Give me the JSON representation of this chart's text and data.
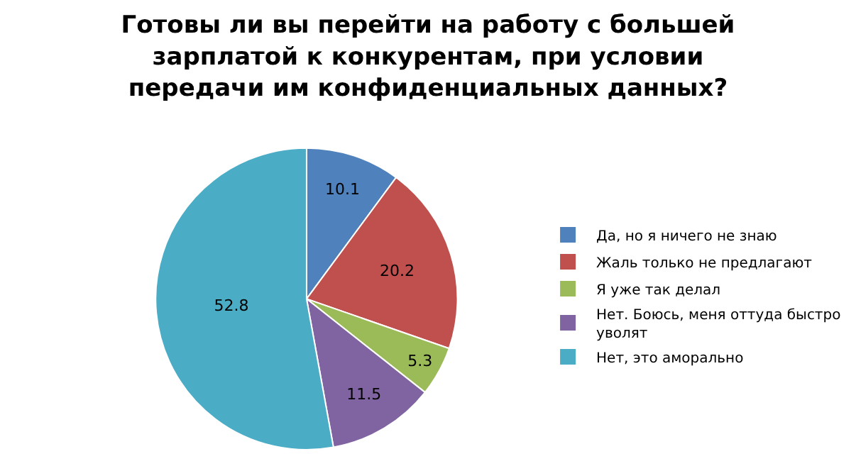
{
  "chart_data": {
    "type": "pie",
    "title": "Готовы ли вы перейти на работу с большей зарплатой к конкурентам, при условии передачи им конфиденциальных данных?",
    "categories": [
      "Да, но я ничего не знаю",
      "Жаль только не предлагают",
      "Я уже так делал",
      "Нет. Боюсь, меня оттуда быстро уволят",
      "Нет, это аморально"
    ],
    "values": [
      10.1,
      20.2,
      5.3,
      11.5,
      52.8
    ],
    "colors": [
      "#4f81bd",
      "#c0504d",
      "#9bbb59",
      "#8064a2",
      "#4bacc6"
    ],
    "data_labels": true,
    "legend": "right"
  }
}
